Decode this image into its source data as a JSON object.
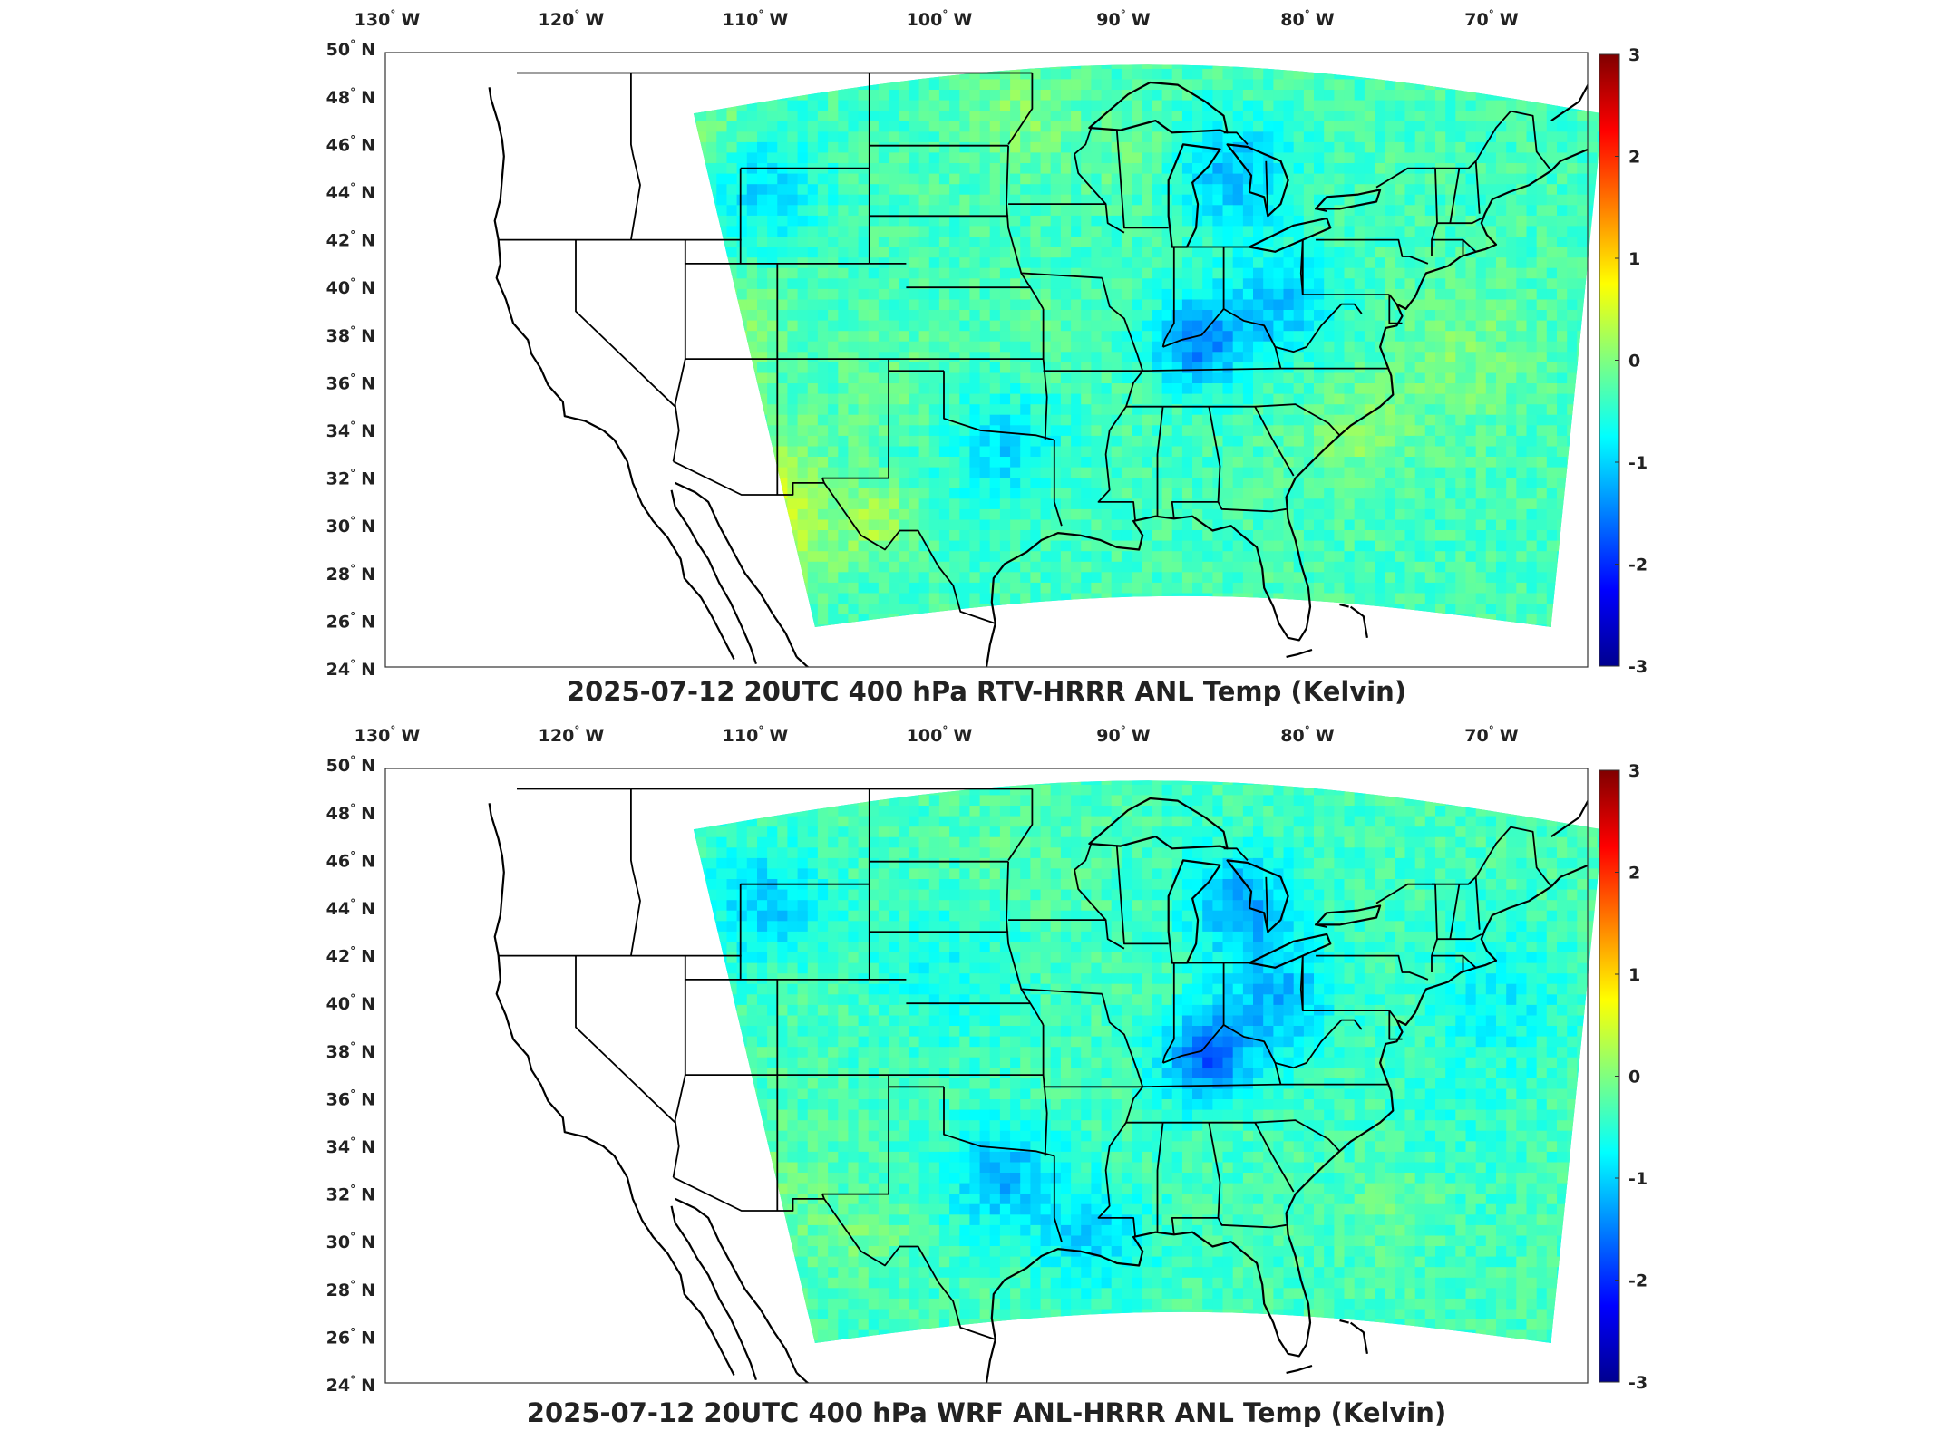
{
  "panels": [
    {
      "title": "2025-07-12 20UTC 400 hPa RTV-HRRR ANL Temp (Kelvin)",
      "variant": "rtv"
    },
    {
      "title": "2025-07-12 20UTC 400 hPa WRF ANL-HRRR ANL Temp (Kelvin)",
      "variant": "wrf"
    }
  ],
  "lon_ticks": [
    {
      "value": -130,
      "label": "130",
      "hemi": "W"
    },
    {
      "value": -120,
      "label": "120",
      "hemi": "W"
    },
    {
      "value": -110,
      "label": "110",
      "hemi": "W"
    },
    {
      "value": -100,
      "label": "100",
      "hemi": "W"
    },
    {
      "value": -90,
      "label": "90",
      "hemi": "W"
    },
    {
      "value": -80,
      "label": "80",
      "hemi": "W"
    },
    {
      "value": -70,
      "label": "70",
      "hemi": "W"
    }
  ],
  "lat_ticks": [
    {
      "value": 50,
      "label": "50",
      "hemi": "N"
    },
    {
      "value": 48,
      "label": "48",
      "hemi": "N"
    },
    {
      "value": 46,
      "label": "46",
      "hemi": "N"
    },
    {
      "value": 44,
      "label": "44",
      "hemi": "N"
    },
    {
      "value": 42,
      "label": "42",
      "hemi": "N"
    },
    {
      "value": 40,
      "label": "40",
      "hemi": "N"
    },
    {
      "value": 38,
      "label": "38",
      "hemi": "N"
    },
    {
      "value": 36,
      "label": "36",
      "hemi": "N"
    },
    {
      "value": 34,
      "label": "34",
      "hemi": "N"
    },
    {
      "value": 32,
      "label": "32",
      "hemi": "N"
    },
    {
      "value": 30,
      "label": "30",
      "hemi": "N"
    },
    {
      "value": 28,
      "label": "28",
      "hemi": "N"
    },
    {
      "value": 26,
      "label": "26",
      "hemi": "N"
    },
    {
      "value": 24,
      "label": "24",
      "hemi": "N"
    }
  ],
  "colorbar": {
    "min": -3,
    "max": 3,
    "ticks": [
      "3",
      "2",
      "1",
      "0",
      "-1",
      "-2",
      "-3"
    ],
    "colormap": "jet",
    "colors": [
      "#00008f",
      "#0000ff",
      "#00ffff",
      "#ffff00",
      "#ff0000",
      "#800000"
    ]
  },
  "map": {
    "degree_symbol": "°",
    "projection": "equirectangular",
    "lon_range": [
      -130,
      -64
    ],
    "lat_range": [
      24,
      50
    ],
    "field_background": "#33dcd8"
  }
}
